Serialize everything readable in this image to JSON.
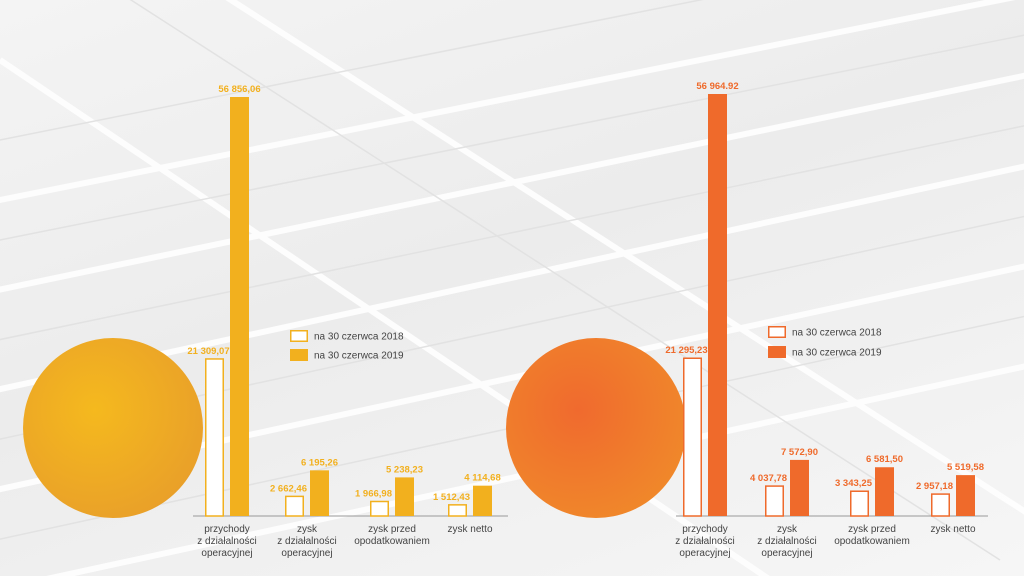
{
  "chart_data": [
    {
      "type": "bar",
      "categories": [
        [
          "przychody",
          "z działalności",
          "operacyjnej"
        ],
        [
          "zysk",
          "z działalności",
          "operacyjnej"
        ],
        [
          "zysk przed",
          "opodatkowaniem"
        ],
        [
          "zysk netto"
        ]
      ],
      "series": [
        {
          "name": "na 30 czerwca 2018",
          "values": [
            21309.07,
            2662.46,
            1966.98,
            1512.43
          ],
          "labels": [
            "21 309,07",
            "2 662,46",
            "1 966,98",
            "1 512,43"
          ]
        },
        {
          "name": "na 30 czerwca 2019",
          "values": [
            56856.06,
            6195.26,
            5238.23,
            4114.68
          ],
          "labels": [
            "56 856,06",
            "6 195,26",
            "5 238,23",
            "4 114,68"
          ]
        }
      ],
      "color": "#f2b01e",
      "ylim": [
        0,
        60000
      ],
      "legend": "center"
    },
    {
      "type": "bar",
      "categories": [
        [
          "przychody",
          "z działalności",
          "operacyjnej"
        ],
        [
          "zysk",
          "z działalności",
          "operacyjnej"
        ],
        [
          "zysk przed",
          "opodatkowaniem"
        ],
        [
          "zysk netto"
        ]
      ],
      "series": [
        {
          "name": "na 30 czerwca 2018",
          "values": [
            21295.23,
            4037.78,
            3343.25,
            2957.18
          ],
          "labels": [
            "21 295,23",
            "4 037,78",
            "3 343,25",
            "2 957,18"
          ]
        },
        {
          "name": "na 30 czerwca 2019",
          "values": [
            56964.92,
            7572.9,
            6581.5,
            5519.58
          ],
          "labels": [
            "56 964.92",
            "7 572,90",
            "6 581,50",
            "5 519,58"
          ]
        }
      ],
      "color": "#ef6a2b",
      "ylim": [
        0,
        60000
      ],
      "legend": "center"
    }
  ]
}
